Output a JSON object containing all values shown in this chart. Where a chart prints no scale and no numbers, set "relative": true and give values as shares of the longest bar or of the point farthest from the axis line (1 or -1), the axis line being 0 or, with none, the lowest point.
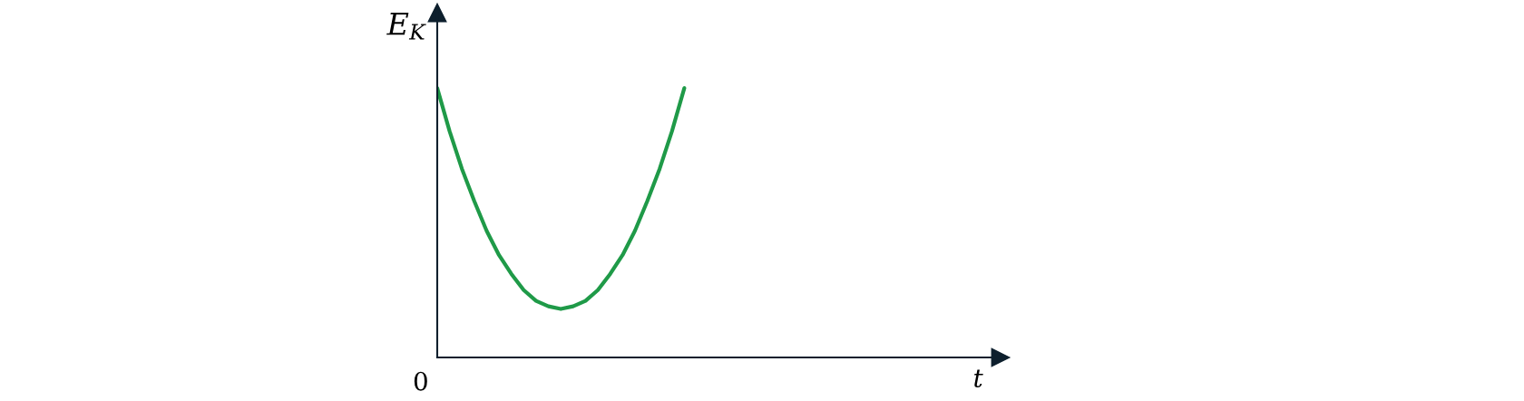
{
  "chart_data": {
    "type": "line",
    "relative": true,
    "ylabel": "E$_{K}$",
    "annotations": [
      "0",
      "t"
    ],
    "categories": [
      null,
      null,
      null,
      null,
      null,
      null,
      null,
      null,
      null,
      null,
      null,
      null,
      null,
      null,
      null,
      null,
      null,
      null,
      null,
      null,
      null
    ],
    "series": [
      {
        "color": "#1f9a48",
        "values": [
          1.0,
          0.84,
          0.7,
          0.58,
          0.47,
          0.38,
          0.31,
          0.25,
          0.21,
          0.19,
          0.18,
          0.19,
          0.21,
          0.25,
          0.31,
          0.38,
          0.47,
          0.58,
          0.7,
          0.84,
          1.0
        ]
      }
    ]
  }
}
